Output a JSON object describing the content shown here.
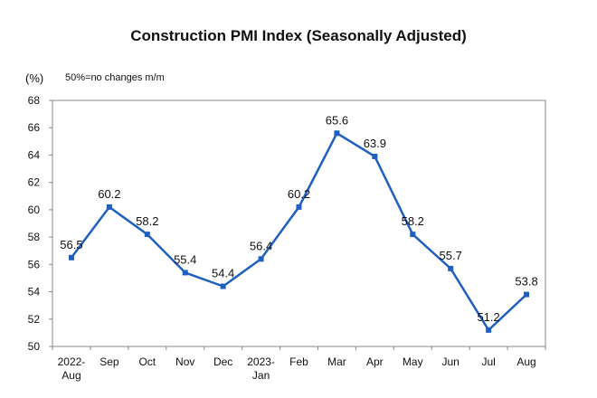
{
  "chart_data": {
    "type": "line",
    "title": "Construction PMI Index (Seasonally Adjusted)",
    "unit": "(%)",
    "note": "50%=no changes m/m",
    "categories": [
      [
        "2022-",
        "Aug"
      ],
      [
        "Sep"
      ],
      [
        "Oct"
      ],
      [
        "Nov"
      ],
      [
        "Dec"
      ],
      [
        "2023-",
        "Jan"
      ],
      [
        "Feb"
      ],
      [
        "Mar"
      ],
      [
        "Apr"
      ],
      [
        "May"
      ],
      [
        "Jun"
      ],
      [
        "Jul"
      ],
      [
        "Aug"
      ]
    ],
    "values": [
      56.5,
      60.2,
      58.2,
      55.4,
      54.4,
      56.4,
      60.2,
      65.6,
      63.9,
      58.2,
      55.7,
      51.2,
      53.8
    ],
    "ylim": [
      50,
      68
    ],
    "yticks": [
      50,
      52,
      54,
      56,
      58,
      60,
      62,
      64,
      66,
      68
    ],
    "color": "#1f5fbf",
    "grid": false,
    "legend": "none"
  }
}
